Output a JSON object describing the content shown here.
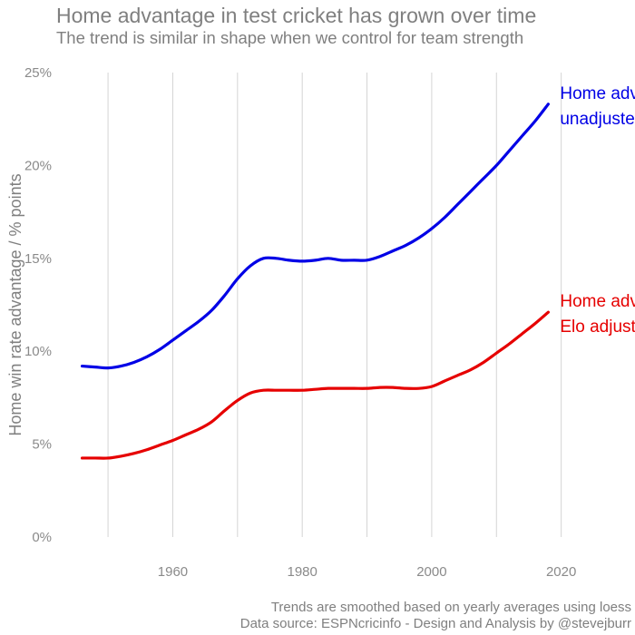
{
  "header": {
    "title": "Home advantage in test cricket has grown over time",
    "subtitle": "The trend is similar in shape when we control for team strength"
  },
  "caption": {
    "line1": "Trends are smoothed based on yearly averages using loess",
    "line2": "Data source: ESPNcricinfo - Design and Analysis by @stevejburr"
  },
  "chart_data": {
    "type": "line",
    "title": "Home advantage in test cricket has grown over time",
    "subtitle": "The trend is similar in shape when we control for team strength",
    "xlabel": "",
    "ylabel": "Home win rate advantage / % points",
    "xlim": [
      1942,
      2030
    ],
    "ylim": [
      0,
      25
    ],
    "x_ticks": [
      1960,
      1980,
      2000,
      2020
    ],
    "x_tick_labels": [
      "1960",
      "1980",
      "2000",
      "2020"
    ],
    "y_ticks": [
      0,
      5,
      10,
      15,
      20,
      25
    ],
    "y_tick_labels": [
      "0%",
      "5%",
      "10%",
      "15%",
      "20%",
      "25%"
    ],
    "grid": "vertical only",
    "legend": "direct labels at line ends",
    "series": [
      {
        "name": "Home advantage unadjusted",
        "label_lines": [
          "Home advantage",
          "unadjusted"
        ],
        "color": "#0000e6",
        "x": [
          1946,
          1948,
          1950,
          1952,
          1954,
          1956,
          1958,
          1960,
          1962,
          1964,
          1966,
          1968,
          1970,
          1972,
          1974,
          1976,
          1978,
          1980,
          1982,
          1984,
          1986,
          1988,
          1990,
          1992,
          1994,
          1996,
          1998,
          2000,
          2002,
          2004,
          2006,
          2008,
          2010,
          2012,
          2014,
          2016,
          2018
        ],
        "y": [
          9.2,
          9.15,
          9.1,
          9.2,
          9.4,
          9.7,
          10.1,
          10.6,
          11.1,
          11.6,
          12.2,
          13.0,
          13.9,
          14.6,
          15.0,
          15.0,
          14.9,
          14.85,
          14.9,
          15.0,
          14.9,
          14.9,
          14.9,
          15.1,
          15.4,
          15.7,
          16.1,
          16.6,
          17.2,
          17.9,
          18.6,
          19.3,
          20.0,
          20.8,
          21.6,
          22.4,
          23.3
        ]
      },
      {
        "name": "Home advantage Elo adjusted",
        "label_lines": [
          "Home advantage",
          "Elo adjusted"
        ],
        "color": "#e60000",
        "x": [
          1946,
          1948,
          1950,
          1952,
          1954,
          1956,
          1958,
          1960,
          1962,
          1964,
          1966,
          1968,
          1970,
          1972,
          1974,
          1976,
          1978,
          1980,
          1982,
          1984,
          1986,
          1988,
          1990,
          1992,
          1994,
          1996,
          1998,
          2000,
          2002,
          2004,
          2006,
          2008,
          2010,
          2012,
          2014,
          2016,
          2018
        ],
        "y": [
          4.25,
          4.25,
          4.25,
          4.35,
          4.5,
          4.7,
          4.95,
          5.2,
          5.5,
          5.8,
          6.2,
          6.8,
          7.35,
          7.75,
          7.9,
          7.9,
          7.9,
          7.9,
          7.95,
          8.0,
          8.0,
          8.0,
          8.0,
          8.05,
          8.05,
          8.0,
          8.0,
          8.1,
          8.4,
          8.7,
          9.0,
          9.4,
          9.9,
          10.4,
          10.95,
          11.5,
          12.1
        ]
      }
    ]
  }
}
